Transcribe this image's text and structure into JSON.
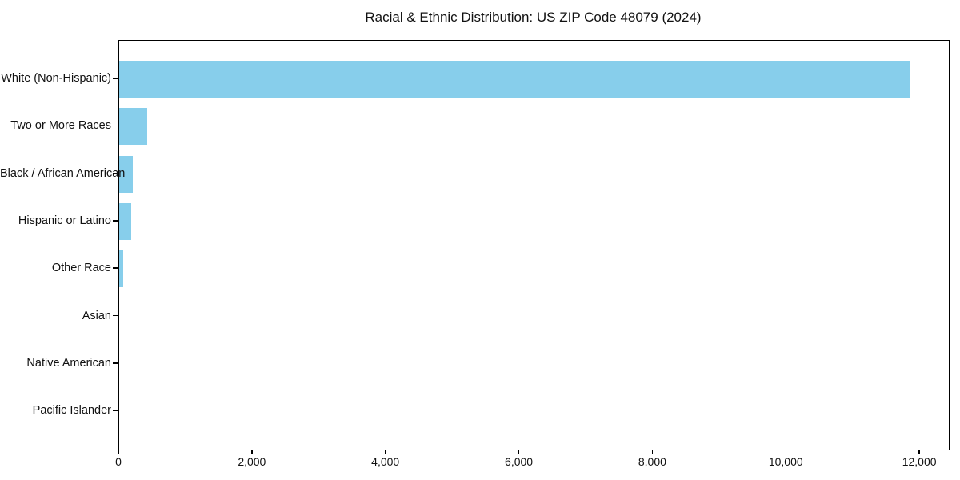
{
  "figure": {
    "background": "#ffffff",
    "text_color": "#111111",
    "spine_color": "#000000"
  },
  "chart_data": {
    "type": "bar",
    "orientation": "horizontal",
    "title": "Racial & Ethnic Distribution: US ZIP Code 48079 (2024)",
    "categories": [
      "White (Non-Hispanic)",
      "Two or More Races",
      "Black / African American",
      "Hispanic or Latino",
      "Other Race",
      "Asian",
      "Native American",
      "Pacific Islander"
    ],
    "values": [
      11850,
      425,
      200,
      175,
      55,
      0,
      0,
      0
    ],
    "xlabel": "",
    "ylabel": "",
    "xlim": [
      0,
      12430
    ],
    "xticks": [
      0,
      2000,
      4000,
      6000,
      8000,
      10000,
      12000
    ],
    "xtick_labels": [
      "0",
      "2,000",
      "4,000",
      "6,000",
      "8,000",
      "10,000",
      "12,000"
    ],
    "bar_color": "#87CEEB",
    "grid": false,
    "legend": "none"
  }
}
